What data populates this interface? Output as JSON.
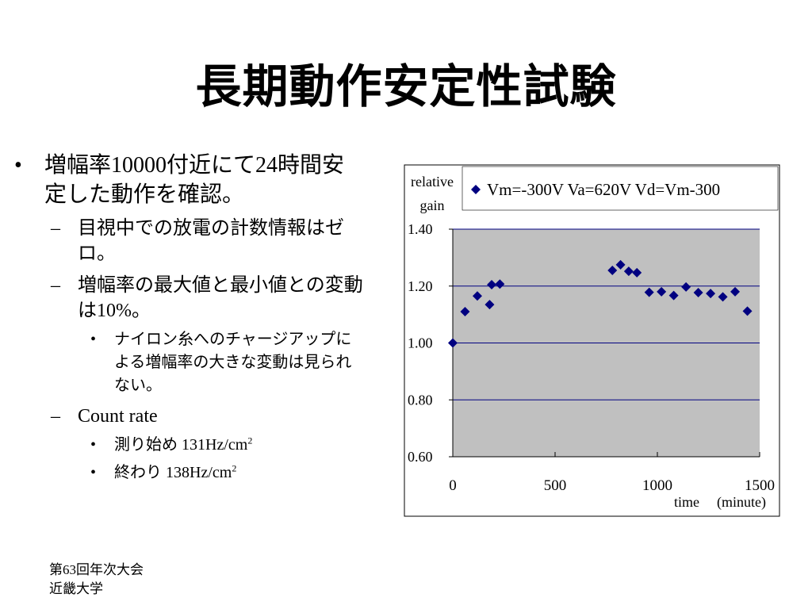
{
  "slide": {
    "title": "長期動作安定性試験",
    "bullets": {
      "b1": "増幅率10000付近にて24時間安定した動作を確認。",
      "b1_sub1": "目視中での放電の計数情報はゼロ。",
      "b1_sub2": "増幅率の最大値と最小値との変動は10%。",
      "b1_sub2_sub1": "ナイロン糸へのチャージアップによる増幅率の大きな変動は見られない。",
      "b1_sub3": "Count rate",
      "rate_start_label": "測り始め 131Hz/cm",
      "rate_start_exp": "2",
      "rate_end_label": "終わり 138Hz/cm",
      "rate_end_exp": "2"
    },
    "footer": {
      "line1": "第63回年次大会",
      "line2": "近畿大学"
    }
  },
  "chart_data": {
    "type": "scatter",
    "ylabel_line1": "relative",
    "ylabel_line2": "gain",
    "xlabel": "time",
    "xlabel_unit": "(minute)",
    "xlim": [
      0,
      1500
    ],
    "ylim": [
      0.6,
      1.4
    ],
    "x_ticks": [
      "0",
      "500",
      "1000",
      "1500"
    ],
    "y_ticks": [
      "0.60",
      "0.80",
      "1.00",
      "1.20",
      "1.40"
    ],
    "grid": true,
    "legend_position": "top-right",
    "plot_background": "#c0c0c0",
    "marker_color": "#000080",
    "series": [
      {
        "name": "Vm=-300V Va=620V Vd=Vm-300",
        "points": [
          [
            0,
            1.0
          ],
          [
            60,
            1.11
          ],
          [
            120,
            1.165
          ],
          [
            180,
            1.135
          ],
          [
            190,
            1.205
          ],
          [
            230,
            1.207
          ],
          [
            780,
            1.255
          ],
          [
            820,
            1.275
          ],
          [
            860,
            1.252
          ],
          [
            900,
            1.247
          ],
          [
            960,
            1.178
          ],
          [
            1020,
            1.18
          ],
          [
            1080,
            1.167
          ],
          [
            1140,
            1.197
          ],
          [
            1200,
            1.177
          ],
          [
            1260,
            1.174
          ],
          [
            1320,
            1.162
          ],
          [
            1380,
            1.18
          ],
          [
            1440,
            1.112
          ]
        ]
      }
    ]
  }
}
